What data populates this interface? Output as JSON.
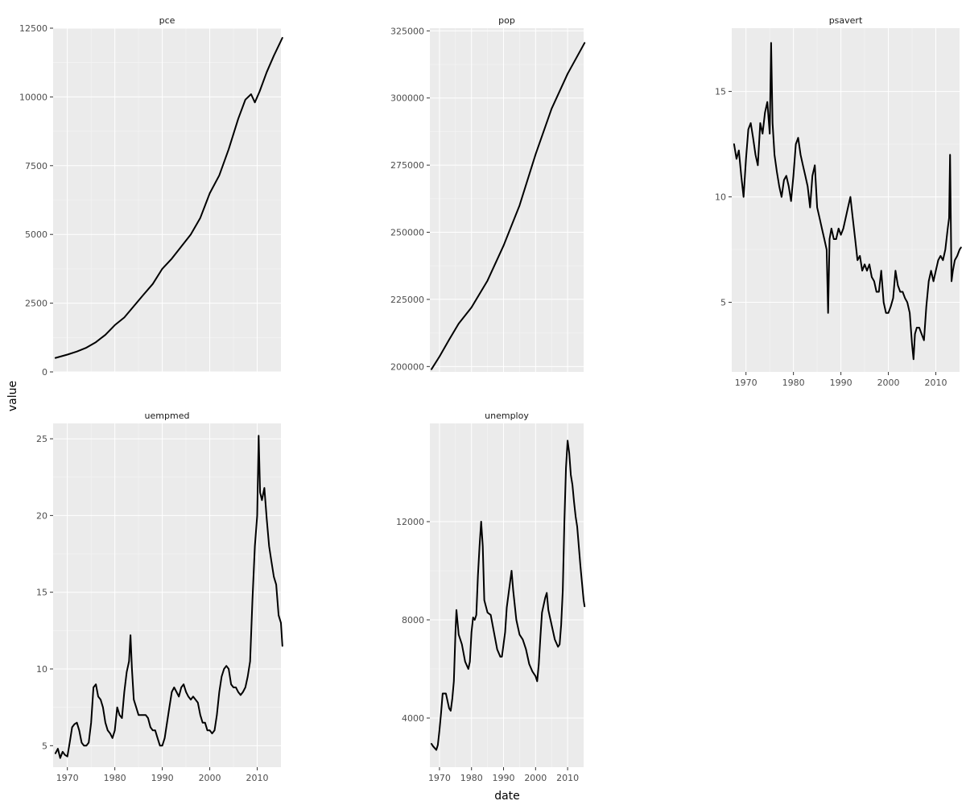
{
  "chart_data": {
    "type": "line",
    "layout": "facet_wrap",
    "xlabel": "date",
    "ylabel": "value",
    "grid": true,
    "facet_scales": "free_y",
    "facets": [
      {
        "name": "pce",
        "xlim": [
          1967,
          2015
        ],
        "ylim": [
          0,
          12500
        ],
        "yticks": [
          0,
          2500,
          5000,
          7500,
          10000,
          12500
        ],
        "yticklabels": [
          "0",
          "2500",
          "5000",
          "7500",
          "10000",
          "12500"
        ],
        "xticks": [],
        "xticklabels": [],
        "x": [
          1967.5,
          1970,
          1972,
          1974,
          1976,
          1978,
          1980,
          1982,
          1984,
          1986,
          1988,
          1990,
          1992,
          1994,
          1996,
          1998,
          2000,
          2002,
          2004,
          2006,
          2007.5,
          2008.7,
          2009.5,
          2010.5,
          2012,
          2013.5,
          2015.3
        ],
        "values": [
          510,
          630,
          740,
          880,
          1080,
          1350,
          1700,
          1980,
          2390,
          2800,
          3200,
          3750,
          4120,
          4560,
          5000,
          5600,
          6500,
          7150,
          8100,
          9200,
          9900,
          10100,
          9800,
          10200,
          10900,
          11500,
          12150
        ]
      },
      {
        "name": "pop",
        "xlim": [
          1967,
          2015
        ],
        "ylim": [
          198000,
          326000
        ],
        "yticks": [
          200000,
          225000,
          250000,
          275000,
          300000,
          325000
        ],
        "yticklabels": [
          "200000",
          "225000",
          "250000",
          "275000",
          "300000",
          "325000"
        ],
        "xticks": [],
        "xticklabels": [],
        "x": [
          1967.5,
          1970,
          1973,
          1976,
          1980,
          1985,
          1990,
          1995,
          2000,
          2005,
          2010,
          2015.3
        ],
        "values": [
          199000,
          203700,
          210000,
          216000,
          222000,
          232000,
          245000,
          260000,
          279000,
          296000,
          309000,
          320500
        ]
      },
      {
        "name": "psavert",
        "xlim": [
          1967,
          2015
        ],
        "ylim": [
          1.7,
          18
        ],
        "yticks": [
          5,
          10,
          15
        ],
        "yticklabels": [
          "5",
          "10",
          "15"
        ],
        "xticks": [
          1970,
          1980,
          1990,
          2000,
          2010
        ],
        "xticklabels": [
          "1970",
          "1980",
          "1990",
          "2000",
          "2010"
        ],
        "x": [
          1967.5,
          1968,
          1968.5,
          1969,
          1969.5,
          1970,
          1970.5,
          1971,
          1971.5,
          1972,
          1972.5,
          1973,
          1973.5,
          1974,
          1974.5,
          1975,
          1975.3,
          1975.6,
          1976,
          1976.5,
          1977,
          1977.5,
          1978,
          1978.5,
          1979,
          1979.5,
          1980,
          1980.5,
          1981,
          1981.5,
          1982,
          1982.5,
          1983,
          1983.5,
          1984,
          1984.5,
          1985,
          1985.5,
          1986,
          1986.5,
          1987,
          1987.3,
          1987.6,
          1988,
          1988.5,
          1989,
          1989.5,
          1990,
          1990.5,
          1991,
          1991.5,
          1992,
          1992.5,
          1993,
          1993.5,
          1994,
          1994.5,
          1995,
          1995.5,
          1996,
          1996.5,
          1997,
          1997.5,
          1998,
          1998.5,
          1999,
          1999.5,
          2000,
          2000.5,
          2001,
          2001.5,
          2002,
          2002.5,
          2003,
          2003.5,
          2004,
          2004.5,
          2005,
          2005.3,
          2005.6,
          2006,
          2006.5,
          2007,
          2007.5,
          2008,
          2008.5,
          2009,
          2009.5,
          2010,
          2010.5,
          2011,
          2011.5,
          2012,
          2012.5,
          2012.8,
          2013,
          2013.3,
          2013.6,
          2014,
          2014.5,
          2015,
          2015.3
        ],
        "values": [
          12.5,
          11.8,
          12.2,
          11.0,
          10.0,
          11.8,
          13.2,
          13.5,
          12.8,
          12.0,
          11.5,
          13.5,
          13.0,
          14.0,
          14.5,
          13.0,
          17.3,
          13.5,
          12.0,
          11.2,
          10.5,
          10.0,
          10.8,
          11.0,
          10.5,
          9.8,
          11.0,
          12.5,
          12.8,
          12.0,
          11.5,
          11.0,
          10.5,
          9.5,
          11.0,
          11.5,
          9.5,
          9.0,
          8.5,
          8.0,
          7.5,
          4.5,
          8.0,
          8.5,
          8.0,
          8.0,
          8.5,
          8.2,
          8.5,
          9.0,
          9.5,
          10.0,
          9.0,
          8.0,
          7.0,
          7.2,
          6.5,
          6.8,
          6.5,
          6.8,
          6.2,
          6.0,
          5.5,
          5.5,
          6.5,
          5.0,
          4.5,
          4.5,
          4.8,
          5.2,
          6.5,
          5.8,
          5.5,
          5.5,
          5.2,
          5.0,
          4.5,
          3.0,
          2.3,
          3.5,
          3.8,
          3.8,
          3.5,
          3.2,
          4.8,
          6.0,
          6.5,
          6.0,
          6.5,
          7.0,
          7.2,
          7.0,
          7.5,
          8.5,
          9.0,
          12.0,
          6.0,
          6.5,
          7.0,
          7.2,
          7.5,
          7.6
        ]
      },
      {
        "name": "uempmed",
        "xlim": [
          1967,
          2015
        ],
        "ylim": [
          3.6,
          26
        ],
        "yticks": [
          5,
          10,
          15,
          20,
          25
        ],
        "yticklabels": [
          "5",
          "10",
          "15",
          "20",
          "25"
        ],
        "xticks": [
          1970,
          1980,
          1990,
          2000,
          2010
        ],
        "xticklabels": [
          "1970",
          "1980",
          "1990",
          "2000",
          "2010"
        ],
        "x": [
          1967.5,
          1968,
          1968.5,
          1969,
          1969.5,
          1970,
          1970.5,
          1971,
          1971.5,
          1972,
          1972.5,
          1973,
          1973.5,
          1974,
          1974.5,
          1975,
          1975.5,
          1976,
          1976.5,
          1977,
          1977.5,
          1978,
          1978.5,
          1979,
          1979.5,
          1980,
          1980.5,
          1981,
          1981.5,
          1982,
          1982.5,
          1983,
          1983.3,
          1983.6,
          1984,
          1984.5,
          1985,
          1985.5,
          1986,
          1986.5,
          1987,
          1987.5,
          1988,
          1988.5,
          1989,
          1989.5,
          1990,
          1990.5,
          1991,
          1991.5,
          1992,
          1992.5,
          1993,
          1993.5,
          1994,
          1994.5,
          1995,
          1995.5,
          1996,
          1996.5,
          1997,
          1997.5,
          1998,
          1998.5,
          1999,
          1999.5,
          2000,
          2000.5,
          2001,
          2001.5,
          2002,
          2002.5,
          2003,
          2003.5,
          2004,
          2004.5,
          2005,
          2005.5,
          2006,
          2006.5,
          2007,
          2007.5,
          2008,
          2008.5,
          2009,
          2009.5,
          2010,
          2010.3,
          2010.6,
          2011,
          2011.5,
          2012,
          2012.5,
          2013,
          2013.5,
          2014,
          2014.5,
          2015,
          2015.3
        ],
        "values": [
          4.5,
          4.8,
          4.2,
          4.6,
          4.4,
          4.3,
          5.2,
          6.2,
          6.4,
          6.5,
          6.0,
          5.2,
          5.0,
          5.0,
          5.2,
          6.5,
          8.8,
          9.0,
          8.2,
          8.0,
          7.5,
          6.5,
          6.0,
          5.8,
          5.5,
          6.0,
          7.5,
          7.0,
          6.8,
          8.5,
          9.8,
          10.5,
          12.2,
          10.0,
          8.0,
          7.5,
          7.0,
          7.0,
          7.0,
          7.0,
          6.8,
          6.2,
          6.0,
          6.0,
          5.5,
          5.0,
          5.0,
          5.5,
          6.5,
          7.5,
          8.5,
          8.8,
          8.5,
          8.2,
          8.8,
          9.0,
          8.5,
          8.2,
          8.0,
          8.2,
          8.0,
          7.8,
          7.0,
          6.5,
          6.5,
          6.0,
          6.0,
          5.8,
          6.0,
          7.0,
          8.5,
          9.5,
          10.0,
          10.2,
          10.0,
          9.0,
          8.8,
          8.8,
          8.5,
          8.3,
          8.5,
          8.8,
          9.5,
          10.5,
          14.5,
          18.0,
          20.0,
          25.2,
          21.5,
          21.0,
          21.8,
          19.8,
          18.0,
          17.0,
          16.0,
          15.5,
          13.5,
          13.0,
          11.5
        ]
      },
      {
        "name": "unemploy",
        "xlim": [
          1967,
          2015
        ],
        "ylim": [
          2000,
          16000
        ],
        "yticks": [
          4000,
          8000,
          12000
        ],
        "yticklabels": [
          "4000",
          "8000",
          "12000"
        ],
        "xticks": [
          1970,
          1980,
          1990,
          2000,
          2010
        ],
        "xticklabels": [
          "1970",
          "1980",
          "1990",
          "2000",
          "2010"
        ],
        "x": [
          1967.5,
          1968,
          1969,
          1969.5,
          1970,
          1970.5,
          1971,
          1972,
          1973,
          1973.5,
          1974,
          1974.5,
          1975,
          1975.3,
          1976,
          1977,
          1978,
          1979,
          1979.5,
          1980,
          1980.5,
          1981,
          1981.5,
          1982,
          1982.5,
          1983,
          1983.5,
          1984,
          1985,
          1986,
          1987,
          1988,
          1989,
          1989.5,
          1990,
          1990.5,
          1991,
          1991.5,
          1992,
          1992.5,
          1993,
          1994,
          1995,
          1996,
          1997,
          1998,
          1999,
          2000,
          2000.5,
          2001,
          2001.5,
          2002,
          2002.5,
          2003,
          2003.5,
          2004,
          2005,
          2006,
          2007,
          2007.5,
          2008,
          2008.5,
          2009,
          2009.5,
          2010,
          2010.5,
          2011,
          2011.5,
          2012,
          2012.5,
          2013,
          2013.5,
          2014,
          2014.5,
          2015,
          2015.3
        ],
        "values": [
          2950,
          2850,
          2700,
          2900,
          3500,
          4200,
          5000,
          5000,
          4400,
          4300,
          4800,
          5500,
          7500,
          8400,
          7400,
          7000,
          6300,
          6000,
          6300,
          7500,
          8100,
          8000,
          8200,
          9800,
          11000,
          12000,
          11000,
          8800,
          8300,
          8200,
          7500,
          6800,
          6500,
          6500,
          7000,
          7500,
          8500,
          9000,
          9500,
          10000,
          9200,
          8000,
          7400,
          7200,
          6800,
          6200,
          5900,
          5700,
          5500,
          6200,
          7300,
          8300,
          8600,
          8900,
          9100,
          8400,
          7800,
          7200,
          6900,
          7000,
          7800,
          9200,
          12000,
          14200,
          15300,
          14800,
          13900,
          13500,
          12800,
          12200,
          11800,
          11000,
          10200,
          9500,
          8800,
          8550
        ]
      }
    ]
  }
}
